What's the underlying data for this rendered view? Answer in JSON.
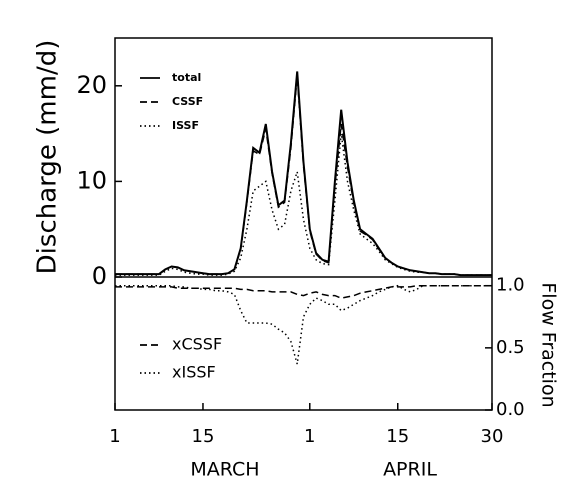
{
  "chart_data": {
    "type": "line",
    "ylabel": "Discharge (mm/d)",
    "y2label": "Flow Fraction",
    "month_labels": [
      "MARCH",
      "APRIL"
    ],
    "x": [
      1,
      2,
      3,
      4,
      5,
      6,
      7,
      8,
      9,
      10,
      11,
      12,
      13,
      14,
      15,
      16,
      17,
      18,
      19,
      20,
      21,
      22,
      23,
      24,
      25,
      26,
      27,
      28,
      29,
      30,
      31,
      32,
      33,
      34,
      35,
      36,
      37,
      38,
      39,
      40,
      41,
      42,
      43,
      44,
      45,
      46,
      47,
      48,
      49,
      50,
      51,
      52,
      53,
      54,
      55,
      56,
      57,
      58,
      59,
      60,
      61
    ],
    "xlim": [
      1,
      61
    ],
    "xticks": [
      1,
      15,
      {
        "value": 32,
        "label": "1"
      },
      {
        "value": 46,
        "label": "15"
      },
      {
        "value": 61,
        "label": "30"
      }
    ],
    "ylim": [
      0,
      25
    ],
    "yticks": [
      0,
      10,
      20
    ],
    "y2lim": [
      0,
      1.07
    ],
    "y2ticks": [
      {
        "value": 0,
        "label": "0.0"
      },
      0.5,
      {
        "value": 1,
        "label": "1.0"
      }
    ],
    "series": [
      {
        "name": "total",
        "color": "#000",
        "style": "solid",
        "values": [
          0.3,
          0.3,
          0.3,
          0.3,
          0.3,
          0.3,
          0.3,
          0.3,
          0.8,
          1.1,
          1.0,
          0.7,
          0.6,
          0.5,
          0.4,
          0.3,
          0.3,
          0.3,
          0.4,
          0.8,
          3,
          8,
          13.5,
          13,
          16,
          11,
          7.5,
          8,
          14,
          21.5,
          12,
          5,
          2.5,
          1.8,
          1.6,
          10,
          17.5,
          12,
          8,
          5,
          4.5,
          4,
          3,
          2,
          1.5,
          1.1,
          0.9,
          0.7,
          0.6,
          0.5,
          0.4,
          0.4,
          0.3,
          0.3,
          0.3,
          0.2,
          0.2,
          0.2,
          0.2,
          0.2,
          0.2
        ]
      },
      {
        "name": "CSSF",
        "color": "#000",
        "style": "dashed",
        "values": [
          0.3,
          0.3,
          0.3,
          0.3,
          0.3,
          0.3,
          0.3,
          0.3,
          0.8,
          1.1,
          1.0,
          0.7,
          0.6,
          0.5,
          0.4,
          0.3,
          0.3,
          0.3,
          0.4,
          0.8,
          2.9,
          7.8,
          13.2,
          12.8,
          15.5,
          10.8,
          7.3,
          7.8,
          13.5,
          21,
          11.6,
          4.8,
          2.4,
          1.7,
          1.5,
          9.5,
          16,
          11.5,
          7.7,
          4.8,
          4.4,
          3.9,
          2.9,
          2,
          1.5,
          1.1,
          0.9,
          0.7,
          0.6,
          0.5,
          0.4,
          0.4,
          0.3,
          0.3,
          0.3,
          0.2,
          0.2,
          0.2,
          0.2,
          0.2,
          0.2
        ]
      },
      {
        "name": "ISSF",
        "color": "#000",
        "style": "dotted",
        "values": [
          0.2,
          0.2,
          0.2,
          0.2,
          0.2,
          0.2,
          0.2,
          0.2,
          0.6,
          0.9,
          0.8,
          0.5,
          0.4,
          0.3,
          0.3,
          0.2,
          0.2,
          0.2,
          0.3,
          0.6,
          2,
          5,
          9,
          9.5,
          10,
          7,
          5,
          5.5,
          9,
          11,
          6,
          3,
          1.8,
          1.4,
          1.3,
          8,
          15,
          10,
          7,
          4.5,
          4,
          3.5,
          2.7,
          1.8,
          1.4,
          1.0,
          0.8,
          0.6,
          0.5,
          0.5,
          0.4,
          0.4,
          0.3,
          0.3,
          0.3,
          0.2,
          0.2,
          0.2,
          0.2,
          0.2,
          0.2
        ]
      },
      {
        "name": "xCSSF",
        "color": "#000",
        "style": "dashed",
        "axis": "y2",
        "values": [
          0.99,
          0.99,
          0.99,
          0.99,
          0.99,
          0.99,
          0.99,
          0.99,
          0.99,
          0.99,
          0.98,
          0.98,
          0.98,
          0.98,
          0.98,
          0.98,
          0.98,
          0.98,
          0.98,
          0.98,
          0.97,
          0.97,
          0.96,
          0.96,
          0.96,
          0.95,
          0.95,
          0.95,
          0.95,
          0.93,
          0.92,
          0.94,
          0.95,
          0.93,
          0.92,
          0.92,
          0.9,
          0.91,
          0.92,
          0.94,
          0.95,
          0.96,
          0.97,
          0.98,
          0.99,
          0.99,
          0.99,
          0.99,
          1,
          1,
          1,
          1,
          1,
          1,
          1,
          1,
          1,
          1,
          1,
          1,
          1
        ]
      },
      {
        "name": "xISSF",
        "color": "#000",
        "style": "dotted",
        "axis": "y2",
        "values": [
          1,
          1,
          1,
          1,
          1,
          1,
          1,
          1,
          1,
          1,
          0.99,
          0.99,
          0.98,
          0.98,
          0.97,
          0.97,
          0.96,
          0.96,
          0.95,
          0.93,
          0.8,
          0.7,
          0.7,
          0.7,
          0.7,
          0.69,
          0.65,
          0.62,
          0.55,
          0.37,
          0.75,
          0.85,
          0.9,
          0.88,
          0.85,
          0.85,
          0.8,
          0.82,
          0.85,
          0.88,
          0.9,
          0.92,
          0.95,
          0.97,
          0.99,
          1,
          0.97,
          0.95,
          0.97,
          1,
          1,
          1,
          1,
          1,
          1,
          1,
          1,
          1,
          1,
          1,
          1
        ]
      }
    ]
  }
}
